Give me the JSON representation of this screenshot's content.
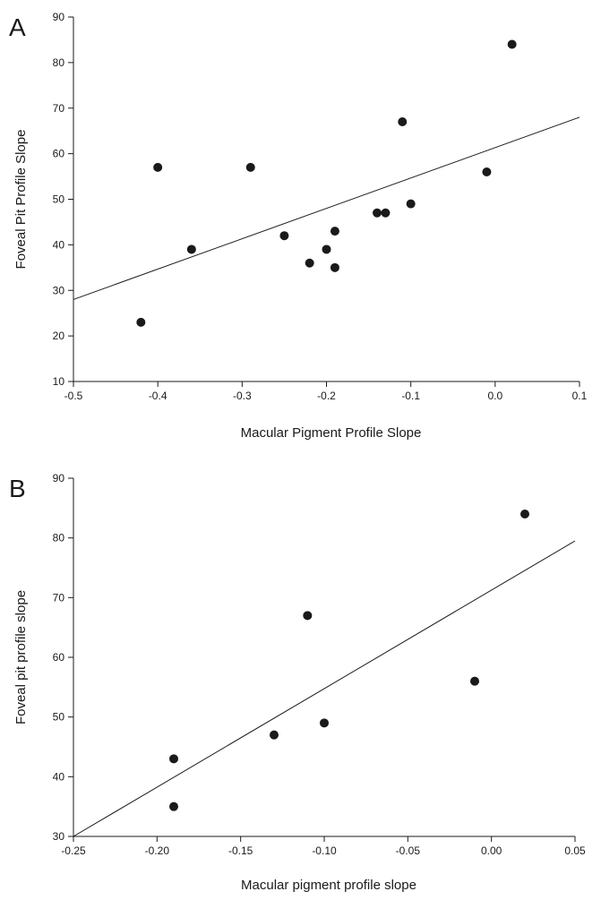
{
  "chart_data": [
    {
      "panel": "A",
      "type": "scatter",
      "title": "",
      "xlabel": "Macular Pigment Profile Slope",
      "ylabel": "Foveal Pit Profile Slope",
      "xlim": [
        -0.5,
        0.1
      ],
      "ylim": [
        10,
        90
      ],
      "x_ticks": [
        -0.5,
        -0.4,
        -0.3,
        -0.2,
        -0.1,
        0.0,
        0.1
      ],
      "x_tick_labels": [
        "-0.5",
        "-0.4",
        "-0.3",
        "-0.2",
        "-0.1",
        "0.0",
        "0.1"
      ],
      "y_ticks": [
        10,
        20,
        30,
        40,
        50,
        60,
        70,
        80,
        90
      ],
      "y_tick_labels": [
        "10",
        "20",
        "30",
        "40",
        "50",
        "60",
        "70",
        "80",
        "90"
      ],
      "grid": false,
      "points": [
        {
          "x": -0.42,
          "y": 23
        },
        {
          "x": -0.4,
          "y": 57
        },
        {
          "x": -0.36,
          "y": 39
        },
        {
          "x": -0.29,
          "y": 57
        },
        {
          "x": -0.25,
          "y": 42
        },
        {
          "x": -0.22,
          "y": 36
        },
        {
          "x": -0.2,
          "y": 39
        },
        {
          "x": -0.19,
          "y": 43
        },
        {
          "x": -0.19,
          "y": 35
        },
        {
          "x": -0.14,
          "y": 47
        },
        {
          "x": -0.13,
          "y": 47
        },
        {
          "x": -0.11,
          "y": 67
        },
        {
          "x": -0.1,
          "y": 49
        },
        {
          "x": -0.01,
          "y": 56
        },
        {
          "x": 0.02,
          "y": 84
        }
      ],
      "fit_line": {
        "x": [
          -0.5,
          0.1
        ],
        "y": [
          28,
          68
        ]
      }
    },
    {
      "panel": "B",
      "type": "scatter",
      "title": "",
      "xlabel": "Macular pigment profile slope",
      "ylabel": "Foveal pit profile slope",
      "xlim": [
        -0.25,
        0.05
      ],
      "ylim": [
        30,
        90
      ],
      "x_ticks": [
        -0.25,
        -0.2,
        -0.15,
        -0.1,
        -0.05,
        0.0,
        0.05
      ],
      "x_tick_labels": [
        "-0.25",
        "-0.20",
        "-0.15",
        "-0.10",
        "-0.05",
        "0.00",
        "0.05"
      ],
      "y_ticks": [
        30,
        40,
        50,
        60,
        70,
        80,
        90
      ],
      "y_tick_labels": [
        "30",
        "40",
        "50",
        "60",
        "70",
        "80",
        "90"
      ],
      "grid": false,
      "points": [
        {
          "x": -0.19,
          "y": 43
        },
        {
          "x": -0.19,
          "y": 35
        },
        {
          "x": -0.13,
          "y": 47
        },
        {
          "x": -0.11,
          "y": 67
        },
        {
          "x": -0.1,
          "y": 49
        },
        {
          "x": -0.01,
          "y": 56
        },
        {
          "x": 0.02,
          "y": 84
        }
      ],
      "fit_line": {
        "x": [
          -0.25,
          0.05
        ],
        "y": [
          30,
          79.5
        ]
      }
    }
  ]
}
